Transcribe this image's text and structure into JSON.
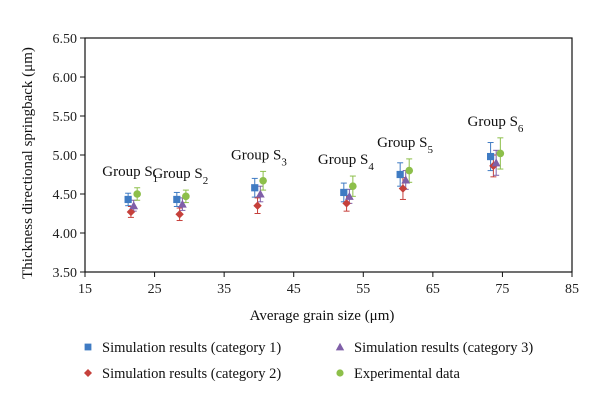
{
  "chart_data": {
    "type": "scatter",
    "title": "",
    "xlabel": "Average grain size (μm)",
    "ylabel": "Thickness directional springback (μm)",
    "xlim": [
      15,
      85
    ],
    "ylim": [
      3.5,
      6.5
    ],
    "xticks": [
      "15",
      "25",
      "35",
      "45",
      "55",
      "65",
      "75",
      "85"
    ],
    "yticks": [
      "3.50",
      "4.00",
      "4.50",
      "5.00",
      "5.50",
      "6.00",
      "6.50"
    ],
    "grid": false,
    "legend_position": "bottom",
    "group_labels": [
      {
        "text": "Group S",
        "sub": "1",
        "x": 21.5
      },
      {
        "text": "Group S",
        "sub": "2",
        "x": 28.7
      },
      {
        "text": "Group S",
        "sub": "3",
        "x": 40.0
      },
      {
        "text": "Group S",
        "sub": "4",
        "x": 52.5
      },
      {
        "text": "Group S",
        "sub": "5",
        "x": 61.0
      },
      {
        "text": "Group S",
        "sub": "6",
        "x": 74.0
      }
    ],
    "series": [
      {
        "name": "Simulation results (category 1)",
        "marker": "square",
        "color": "#3F7BC3",
        "x": [
          21.2,
          28.2,
          39.4,
          52.2,
          60.3,
          73.3
        ],
        "y": [
          4.43,
          4.43,
          4.58,
          4.52,
          4.75,
          4.98
        ],
        "err": [
          0.08,
          0.09,
          0.12,
          0.12,
          0.15,
          0.18
        ]
      },
      {
        "name": "Simulation results (category 2)",
        "marker": "diamond",
        "color": "#C6403B",
        "x": [
          21.6,
          28.6,
          39.8,
          52.6,
          60.7,
          73.7
        ],
        "y": [
          4.27,
          4.24,
          4.35,
          4.38,
          4.57,
          4.86
        ],
        "err": [
          0.07,
          0.08,
          0.1,
          0.1,
          0.14,
          0.14
        ]
      },
      {
        "name": "Simulation results (category 3)",
        "marker": "triangle",
        "color": "#7F5FA8",
        "x": [
          22.0,
          29.0,
          40.2,
          53.0,
          61.1,
          74.1
        ],
        "y": [
          4.35,
          4.37,
          4.5,
          4.47,
          4.68,
          4.9
        ],
        "err": [
          0.07,
          0.08,
          0.1,
          0.09,
          0.12,
          0.16
        ]
      },
      {
        "name": "Experimental data",
        "marker": "circle",
        "color": "#8DBF4A",
        "x": [
          22.5,
          29.5,
          40.6,
          53.5,
          61.6,
          74.7
        ],
        "y": [
          4.5,
          4.47,
          4.67,
          4.6,
          4.8,
          5.02
        ],
        "err": [
          0.08,
          0.08,
          0.12,
          0.13,
          0.15,
          0.2
        ]
      }
    ]
  }
}
